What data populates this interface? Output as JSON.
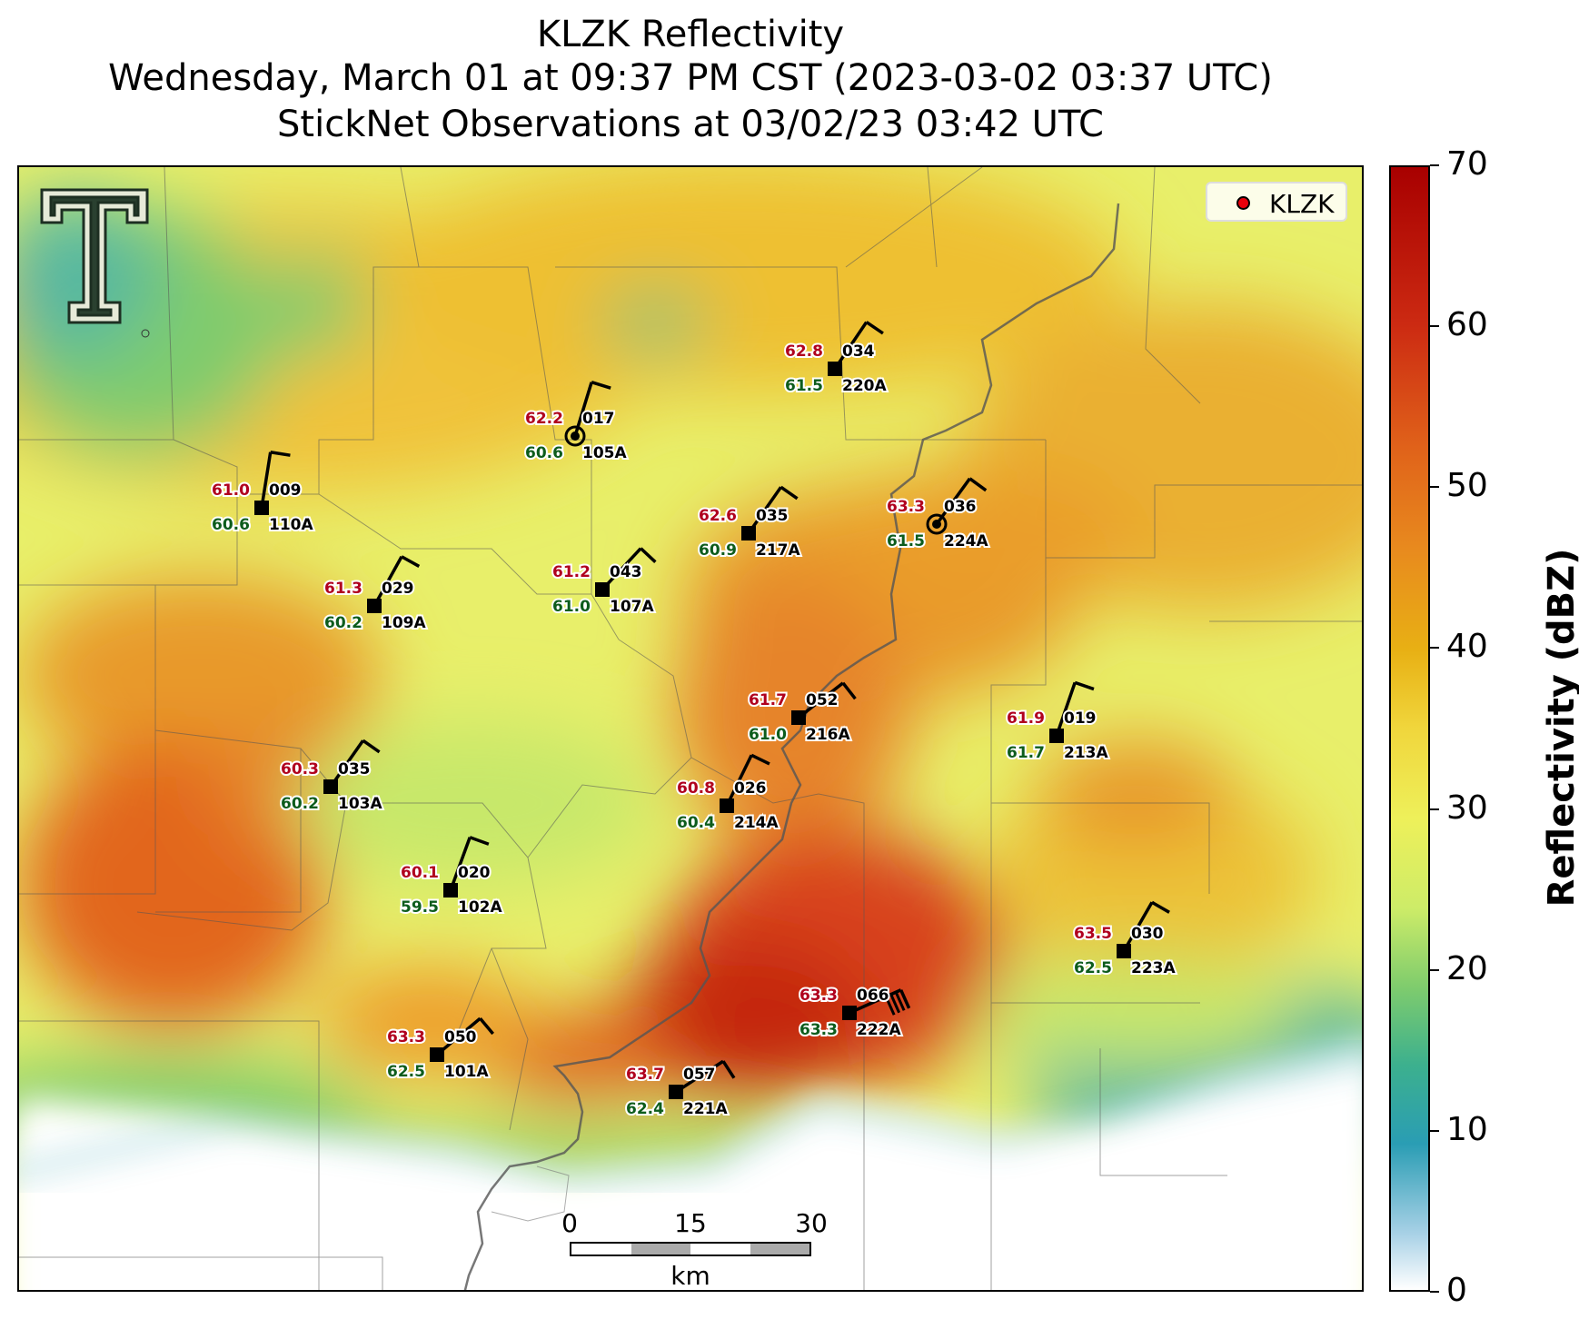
{
  "title_lines": [
    "KLZK Reflectivity",
    "Wednesday, March 01 at 09:37 PM CST (2023-03-02 03:37 UTC)",
    "StickNet Observations at 03/02/23 03:42 UTC"
  ],
  "legend": {
    "label": "KLZK",
    "color": "#e8000b"
  },
  "colorbar": {
    "label": "Reflectivity (dBZ)",
    "range": [
      0,
      70
    ],
    "ticks": [
      "0",
      "10",
      "20",
      "30",
      "40",
      "50",
      "60",
      "70"
    ]
  },
  "scale_bar": {
    "ticks": [
      "0",
      "15",
      "30"
    ],
    "unit": "km"
  },
  "colors": {
    "temperature_text": "#b0001e",
    "dewpoint_text": "#0d5c1c"
  },
  "stations": [
    {
      "id": "110A",
      "temp": "61.0",
      "dew": "60.6",
      "dir": "009"
    },
    {
      "id": "105A",
      "temp": "62.2",
      "dew": "60.6",
      "dir": "017"
    },
    {
      "id": "220A",
      "temp": "62.8",
      "dew": "61.5",
      "dir": "034"
    },
    {
      "id": "109A",
      "temp": "61.3",
      "dew": "60.2",
      "dir": "029"
    },
    {
      "id": "107A",
      "temp": "61.2",
      "dew": "61.0",
      "dir": "043"
    },
    {
      "id": "217A",
      "temp": "62.6",
      "dew": "60.9",
      "dir": "035"
    },
    {
      "id": "224A",
      "temp": "63.3",
      "dew": "61.5",
      "dir": "036"
    },
    {
      "id": "216A",
      "temp": "61.7",
      "dew": "61.0",
      "dir": "052"
    },
    {
      "id": "213A",
      "temp": "61.9",
      "dew": "61.7",
      "dir": "019"
    },
    {
      "id": "103A",
      "temp": "60.3",
      "dew": "60.2",
      "dir": "035"
    },
    {
      "id": "214A",
      "temp": "60.8",
      "dew": "60.4",
      "dir": "026"
    },
    {
      "id": "102A",
      "temp": "60.1",
      "dew": "59.5",
      "dir": "020"
    },
    {
      "id": "223A",
      "temp": "63.5",
      "dew": "62.5",
      "dir": "030"
    },
    {
      "id": "222A",
      "temp": "63.3",
      "dew": "63.3",
      "dir": "066"
    },
    {
      "id": "101A",
      "temp": "63.3",
      "dew": "62.5",
      "dir": "050"
    },
    {
      "id": "221A",
      "temp": "63.7",
      "dew": "62.4",
      "dir": "057"
    }
  ]
}
